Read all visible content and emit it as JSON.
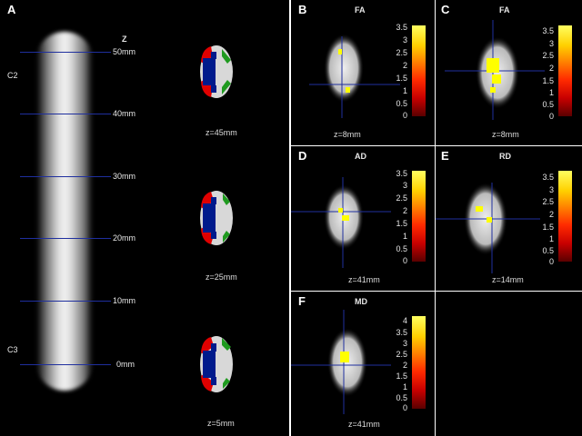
{
  "panelA": {
    "label": "A",
    "axis_label": "Z",
    "levels": [
      "C2",
      "C3"
    ],
    "mm_labels": [
      "50mm",
      "40mm",
      "30mm",
      "20mm",
      "10mm",
      "0mm"
    ],
    "slices": [
      "z=45mm",
      "z=25mm",
      "z=5mm"
    ]
  },
  "panels": [
    {
      "id": "B",
      "metric": "FA",
      "z": "z=8mm",
      "ticks": [
        "3.5",
        "3",
        "2.5",
        "2",
        "1.5",
        "1",
        "0.5",
        "0"
      ]
    },
    {
      "id": "C",
      "metric": "FA",
      "z": "z=8mm",
      "ticks": [
        "3.5",
        "3",
        "2.5",
        "2",
        "1.5",
        "1",
        "0.5",
        "0"
      ]
    },
    {
      "id": "D",
      "metric": "AD",
      "z": "z=41mm",
      "ticks": [
        "3.5",
        "3",
        "2.5",
        "2",
        "1.5",
        "1",
        "0.5",
        "0"
      ]
    },
    {
      "id": "E",
      "metric": "RD",
      "z": "z=14mm",
      "ticks": [
        "3.5",
        "3",
        "2.5",
        "2",
        "1.5",
        "1",
        "0.5",
        "0"
      ]
    },
    {
      "id": "F",
      "metric": "MD",
      "z": "z=41mm",
      "ticks": [
        "4",
        "3.5",
        "3",
        "2.5",
        "2",
        "1.5",
        "1",
        "0.5",
        "0"
      ]
    }
  ],
  "colors": {
    "grid_line": "#1f2f9e",
    "seg_red": "#e00000",
    "seg_blue": "#001a8c",
    "seg_green": "#1f9a1f",
    "hot_yellow": "#ffff00"
  }
}
